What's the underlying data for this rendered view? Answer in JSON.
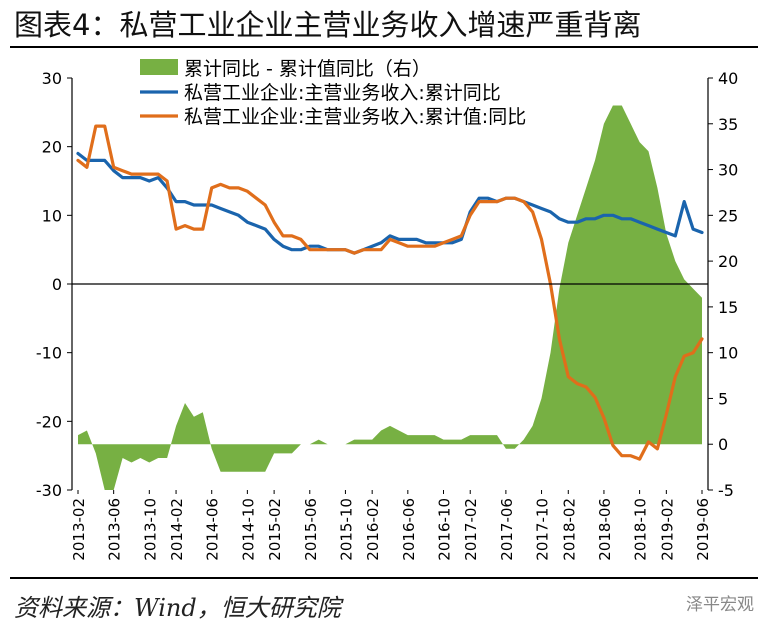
{
  "title": "图表4：私营工业企业主营业务收入增速严重背离",
  "source": "资料来源：Wind，恒大研究院",
  "watermark": "泽平宏观",
  "chart_data": {
    "type": "line+area",
    "categories": [
      "2013-02",
      "2013-06",
      "2013-10",
      "2014-02",
      "2014-06",
      "2014-10",
      "2015-02",
      "2015-06",
      "2015-10",
      "2016-02",
      "2016-06",
      "2016-10",
      "2017-02",
      "2017-06",
      "2017-10",
      "2018-02",
      "2018-06",
      "2018-10",
      "2019-02",
      "2019-06"
    ],
    "x": [
      "2013-02",
      "2013-03",
      "2013-04",
      "2013-05",
      "2013-06",
      "2013-07",
      "2013-08",
      "2013-09",
      "2013-10",
      "2013-11",
      "2013-12",
      "2014-02",
      "2014-03",
      "2014-04",
      "2014-05",
      "2014-06",
      "2014-07",
      "2014-08",
      "2014-09",
      "2014-10",
      "2014-11",
      "2014-12",
      "2015-02",
      "2015-03",
      "2015-04",
      "2015-05",
      "2015-06",
      "2015-07",
      "2015-08",
      "2015-09",
      "2015-10",
      "2015-11",
      "2015-12",
      "2016-02",
      "2016-03",
      "2016-04",
      "2016-05",
      "2016-06",
      "2016-07",
      "2016-08",
      "2016-09",
      "2016-10",
      "2016-11",
      "2016-12",
      "2017-02",
      "2017-03",
      "2017-04",
      "2017-05",
      "2017-06",
      "2017-07",
      "2017-08",
      "2017-09",
      "2017-10",
      "2017-11",
      "2017-12",
      "2018-02",
      "2018-03",
      "2018-04",
      "2018-05",
      "2018-06",
      "2018-07",
      "2018-08",
      "2018-09",
      "2018-10",
      "2018-11",
      "2018-12",
      "2019-02",
      "2019-03",
      "2019-04",
      "2019-05",
      "2019-06"
    ],
    "series": [
      {
        "name": "累计同比 - 累计值同比（右）",
        "type": "area",
        "axis": "right",
        "color": "#77b043",
        "values": [
          1.0,
          1.5,
          -1.0,
          -5.0,
          -5.0,
          -1.5,
          -2.0,
          -1.5,
          -2.0,
          -1.5,
          -1.5,
          2.0,
          4.5,
          3.0,
          3.5,
          -0.5,
          -3.0,
          -3.0,
          -3.0,
          -3.0,
          -3.0,
          -3.0,
          -1.0,
          -1.0,
          -1.0,
          0.0,
          0.0,
          0.5,
          0.0,
          0.0,
          0.0,
          0.5,
          0.5,
          0.5,
          1.5,
          2.0,
          1.5,
          1.0,
          1.0,
          1.0,
          1.0,
          0.5,
          0.5,
          0.5,
          1.0,
          1.0,
          1.0,
          1.0,
          -0.5,
          -0.5,
          0.5,
          2.0,
          5.0,
          10.0,
          17.0,
          22.0,
          25.0,
          28.0,
          31.0,
          35.0,
          37.0,
          37.0,
          35.0,
          33.0,
          32.0,
          28.0,
          23.0,
          20.0,
          18.0,
          17.0,
          16.0
        ]
      },
      {
        "name": "私营工业企业:主营业务收入:累计同比",
        "type": "line",
        "axis": "left",
        "color": "#1a64ad",
        "values": [
          19.0,
          18.0,
          18.0,
          18.0,
          16.5,
          15.5,
          15.5,
          15.5,
          15.0,
          15.5,
          14.0,
          12.0,
          12.0,
          11.5,
          11.5,
          11.5,
          11.0,
          10.5,
          10.0,
          9.0,
          8.5,
          8.0,
          6.5,
          5.5,
          5.0,
          5.0,
          5.5,
          5.5,
          5.0,
          5.0,
          5.0,
          4.5,
          5.0,
          5.5,
          6.0,
          7.0,
          6.5,
          6.5,
          6.5,
          6.0,
          6.0,
          6.0,
          6.0,
          6.5,
          10.5,
          12.5,
          12.5,
          12.0,
          12.5,
          12.5,
          12.0,
          11.5,
          11.0,
          10.5,
          9.5,
          9.0,
          9.0,
          9.5,
          9.5,
          10.0,
          10.0,
          9.5,
          9.5,
          9.0,
          8.5,
          8.0,
          7.5,
          7.0,
          12.0,
          8.0,
          7.5
        ]
      },
      {
        "name": "私营工业企业:主营业务收入:累计值:同比",
        "type": "line",
        "axis": "left",
        "color": "#e06e1b",
        "values": [
          18.0,
          17.0,
          23.0,
          23.0,
          17.0,
          16.5,
          16.0,
          16.0,
          16.0,
          16.0,
          15.0,
          8.0,
          8.5,
          8.0,
          8.0,
          14.0,
          14.5,
          14.0,
          14.0,
          13.5,
          12.5,
          11.5,
          9.0,
          7.0,
          7.0,
          6.5,
          5.0,
          5.0,
          5.0,
          5.0,
          5.0,
          4.5,
          5.0,
          5.0,
          5.0,
          6.5,
          6.0,
          5.5,
          5.5,
          5.5,
          5.5,
          6.0,
          6.5,
          7.0,
          10.0,
          12.0,
          12.0,
          12.0,
          12.5,
          12.5,
          12.0,
          10.5,
          6.5,
          0.0,
          -8.0,
          -13.5,
          -14.5,
          -15.0,
          -16.5,
          -19.5,
          -23.5,
          -25.0,
          -25.0,
          -25.5,
          -23.0,
          -24.0,
          -19.0,
          -13.5,
          -10.5,
          -10.0,
          -8.0
        ]
      }
    ],
    "y_left": {
      "ylim": [
        -30,
        30
      ],
      "ticks": [
        -30,
        -20,
        -10,
        0,
        10,
        20,
        30
      ]
    },
    "y_right": {
      "ylim": [
        -5,
        40
      ],
      "ticks": [
        -5,
        0,
        5,
        10,
        15,
        20,
        25,
        30,
        35,
        40
      ]
    },
    "legend": "top-center",
    "grid": false
  }
}
